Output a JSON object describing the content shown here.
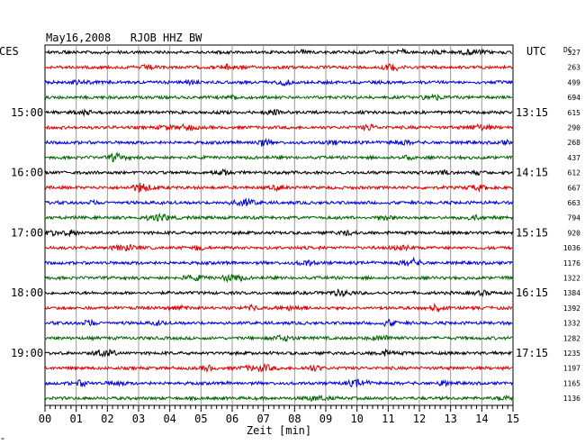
{
  "chart_data": {
    "type": "line",
    "title": "May16,2008   RJOB HHZ BW",
    "left_axis_label": "CES",
    "right_axis_label": "UTC",
    "dc_header": "DC",
    "xlabel": "Zeit [min]",
    "xlim": [
      0,
      15
    ],
    "x_ticks": [
      "00",
      "01",
      "02",
      "03",
      "04",
      "05",
      "06",
      "07",
      "08",
      "09",
      "10",
      "11",
      "12",
      "13",
      "14",
      "15"
    ],
    "grid": true,
    "traces_per_hour": 4,
    "trace_colors": [
      "#000000",
      "#e00000",
      "#0000e0",
      "#006400"
    ],
    "hour_labels_left": [
      "15:00",
      "16:00",
      "17:00",
      "18:00",
      "19:00"
    ],
    "hour_labels_right": [
      "13:15",
      "14:15",
      "15:15",
      "16:15",
      "17:15"
    ],
    "dc_values": [
      "327",
      "263",
      "499",
      "694",
      "615",
      "290",
      "268",
      "437",
      "612",
      "667",
      "663",
      "794",
      "920",
      "1036",
      "1176",
      "1322",
      "1384",
      "1392",
      "1332",
      "1282",
      "1235",
      "1197",
      "1165",
      "1136"
    ],
    "corner_mark": "≈"
  }
}
